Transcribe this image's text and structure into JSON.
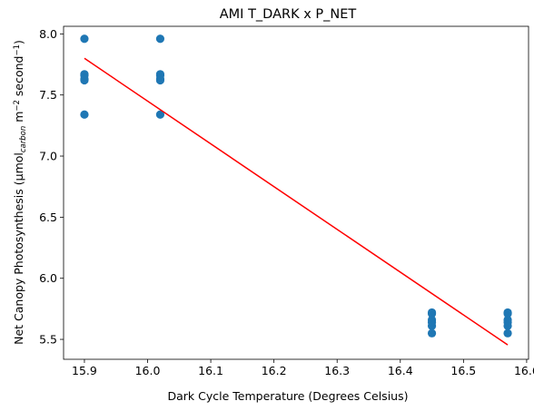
{
  "chart_data": {
    "type": "scatter",
    "title": "AMI T_DARK x P_NET",
    "xlabel": "Dark Cycle Temperature (Degrees Celsius)",
    "ylabel_parts": [
      "Net Canopy Photosynthesis (µmol",
      "carbon",
      " m",
      "−2",
      " second",
      "−1",
      ")"
    ],
    "xlim": [
      15.867,
      16.603
    ],
    "ylim": [
      5.337,
      8.062
    ],
    "xticks": [
      15.9,
      16.0,
      16.1,
      16.2,
      16.3,
      16.4,
      16.5,
      16.6
    ],
    "xtick_labels": [
      "15.9",
      "16.0",
      "16.1",
      "16.2",
      "16.3",
      "16.4",
      "16.5",
      "16.6"
    ],
    "yticks": [
      5.5,
      6.0,
      6.5,
      7.0,
      7.5,
      8.0
    ],
    "ytick_labels": [
      "5.5",
      "6.0",
      "6.5",
      "7.0",
      "7.5",
      "8.0"
    ],
    "grid": false,
    "marker_color": "#1f77b4",
    "fit_color": "#ff0000",
    "points": [
      {
        "x": 15.9,
        "y": 7.96
      },
      {
        "x": 15.9,
        "y": 7.67
      },
      {
        "x": 15.9,
        "y": 7.66
      },
      {
        "x": 15.9,
        "y": 7.63
      },
      {
        "x": 15.9,
        "y": 7.62
      },
      {
        "x": 15.9,
        "y": 7.34
      },
      {
        "x": 16.02,
        "y": 7.96
      },
      {
        "x": 16.02,
        "y": 7.67
      },
      {
        "x": 16.02,
        "y": 7.66
      },
      {
        "x": 16.02,
        "y": 7.63
      },
      {
        "x": 16.02,
        "y": 7.62
      },
      {
        "x": 16.02,
        "y": 7.34
      },
      {
        "x": 16.45,
        "y": 5.72
      },
      {
        "x": 16.45,
        "y": 5.71
      },
      {
        "x": 16.45,
        "y": 5.66
      },
      {
        "x": 16.45,
        "y": 5.64
      },
      {
        "x": 16.45,
        "y": 5.61
      },
      {
        "x": 16.45,
        "y": 5.55
      },
      {
        "x": 16.57,
        "y": 5.72
      },
      {
        "x": 16.57,
        "y": 5.71
      },
      {
        "x": 16.57,
        "y": 5.66
      },
      {
        "x": 16.57,
        "y": 5.64
      },
      {
        "x": 16.57,
        "y": 5.61
      },
      {
        "x": 16.57,
        "y": 5.55
      }
    ],
    "fit_line": [
      {
        "x": 15.9,
        "y": 7.8
      },
      {
        "x": 16.57,
        "y": 5.455
      }
    ]
  }
}
